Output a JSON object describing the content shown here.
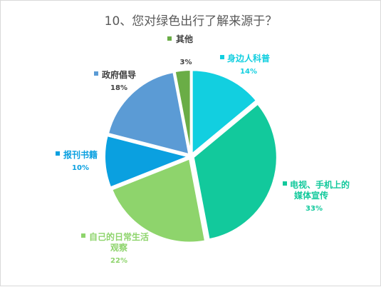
{
  "chart_data": {
    "type": "pie",
    "title": "10、您对绿色出行了解来源于？",
    "legend": "on-chart labels",
    "slices": [
      {
        "label": "身边人科普",
        "value": 14,
        "value_label": "14%",
        "color": "#12cfe0"
      },
      {
        "label": "电视、手机上的媒体宣传",
        "value": 33,
        "value_label": "33%",
        "color": "#12c99c"
      },
      {
        "label": "自己的日常生活观察",
        "value": 22,
        "value_label": "22%",
        "color": "#8ed46c"
      },
      {
        "label": "报刊书籍",
        "value": 10,
        "value_label": "10%",
        "color": "#0aa0e0"
      },
      {
        "label": "政府倡导",
        "value": 18,
        "value_label": "18%",
        "color": "#5b9bd5"
      },
      {
        "label": "其他",
        "value": 3,
        "value_label": "3%",
        "color": "#6aad46"
      }
    ]
  }
}
